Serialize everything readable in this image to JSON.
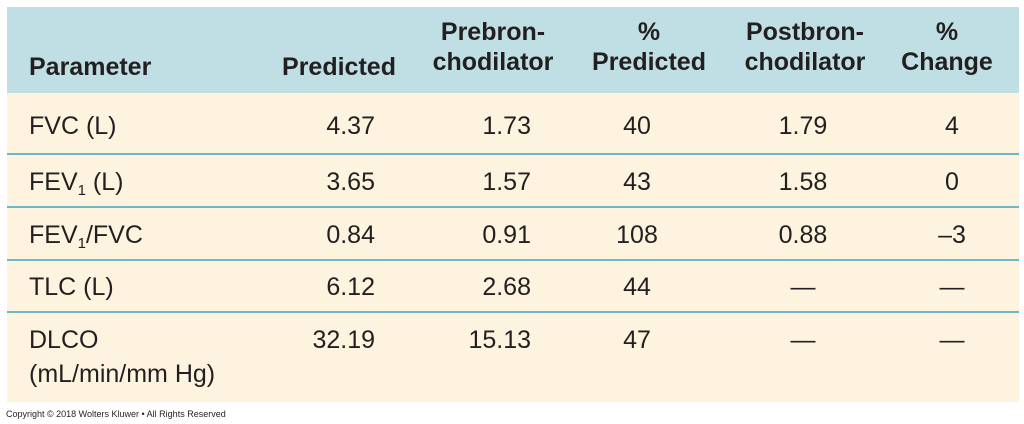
{
  "table": {
    "headers": {
      "parameter": [
        "Parameter"
      ],
      "predicted": [
        "Predicted"
      ],
      "prebronchodilator": [
        "Prebron-",
        "chodilator"
      ],
      "percent_predicted": [
        "%",
        "Predicted"
      ],
      "postbronchodilator": [
        "Postbron-",
        "chodilator"
      ],
      "percent_change": [
        "%",
        "Change"
      ]
    },
    "rows": [
      {
        "parameter": "FVC (L)",
        "predicted": "4.37",
        "prebronchodilator": "1.73",
        "percent_predicted": "40",
        "postbronchodilator": "1.79",
        "percent_change": "4"
      },
      {
        "parameter_pre": "FEV",
        "parameter_sub": "1",
        "parameter_post": " (L)",
        "predicted": "3.65",
        "prebronchodilator": "1.57",
        "percent_predicted": "43",
        "postbronchodilator": "1.58",
        "percent_change": "0"
      },
      {
        "parameter_pre": "FEV",
        "parameter_sub": "1",
        "parameter_post": "/FVC",
        "predicted": "0.84",
        "prebronchodilator": "0.91",
        "percent_predicted": "108",
        "postbronchodilator": "0.88",
        "percent_change": "–3"
      },
      {
        "parameter": "TLC (L)",
        "predicted": "6.12",
        "prebronchodilator": "2.68",
        "percent_predicted": "44",
        "postbronchodilator": "—",
        "percent_change": "—"
      },
      {
        "parameter_line1": "DLCO",
        "parameter_line2": "(mL/min/mm Hg)",
        "predicted": "32.19",
        "prebronchodilator": "15.13",
        "percent_predicted": "47",
        "postbronchodilator": "—",
        "percent_change": "—"
      }
    ]
  },
  "footer": {
    "copyright": "Copyright © 2018 Wolters Kluwer • All Rights Reserved"
  },
  "colors": {
    "header_background": "#bfdfe4",
    "body_background": "#fdf3df",
    "divider": "#6fb7c7",
    "text": "#231f20"
  }
}
